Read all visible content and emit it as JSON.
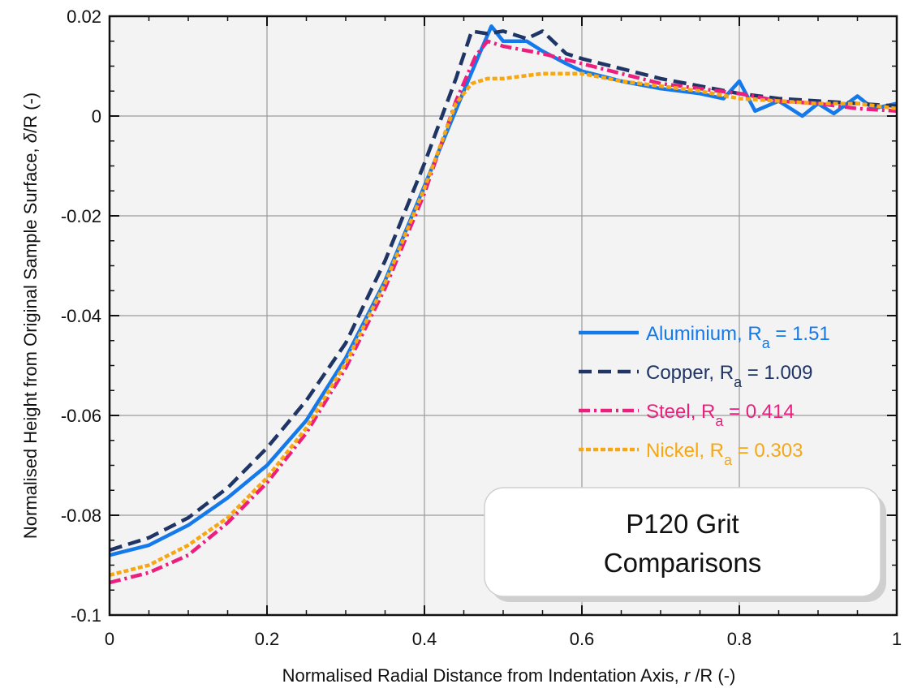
{
  "chart_data": {
    "type": "line",
    "title": "P120 Grit Comparisons",
    "annotation_lines": [
      "P120 Grit",
      "Comparisons"
    ],
    "xlabel": {
      "prefix": "Normalised Radial Distance from Indentation Axis, ",
      "italic": "r",
      "suffix": " /R (-)"
    },
    "ylabel": {
      "prefix": "Normalised Height from Original Sample Surface, ",
      "italic": "δ",
      "suffix": "/R (-)"
    },
    "xlim": [
      0,
      1
    ],
    "ylim": [
      -0.1,
      0.02
    ],
    "x_ticks": [
      0,
      0.2,
      0.4,
      0.6,
      0.8,
      1
    ],
    "x_tick_labels": [
      "0",
      "0.2",
      "0.4",
      "0.6",
      "0.8",
      "1"
    ],
    "y_ticks": [
      -0.1,
      -0.08,
      -0.06,
      -0.04,
      -0.02,
      0,
      0.02
    ],
    "y_tick_labels": [
      "-0.1",
      "-0.08",
      "-0.06",
      "-0.04",
      "-0.02",
      "0",
      "0.02"
    ],
    "grid": true,
    "legend_position": "center-right",
    "series": [
      {
        "name": "Aluminium",
        "legend_prefix": "Aluminium, R",
        "legend_sub": "a",
        "legend_suffix": " = 1.51",
        "color": "#1479ea",
        "style": "solid",
        "x": [
          0,
          0.05,
          0.1,
          0.15,
          0.2,
          0.25,
          0.3,
          0.35,
          0.4,
          0.45,
          0.47,
          0.485,
          0.5,
          0.53,
          0.55,
          0.58,
          0.6,
          0.65,
          0.7,
          0.75,
          0.78,
          0.8,
          0.82,
          0.85,
          0.88,
          0.9,
          0.92,
          0.95,
          0.97,
          1
        ],
        "y": [
          -0.088,
          -0.086,
          -0.082,
          -0.0765,
          -0.07,
          -0.061,
          -0.0485,
          -0.033,
          -0.014,
          0.005,
          0.0125,
          0.018,
          0.015,
          0.015,
          0.013,
          0.0105,
          0.009,
          0.007,
          0.0055,
          0.0045,
          0.0035,
          0.007,
          0.001,
          0.003,
          0.0,
          0.0025,
          0.0005,
          0.004,
          0.0015,
          0.0025
        ]
      },
      {
        "name": "Copper",
        "legend_prefix": "Copper, R",
        "legend_sub": "a",
        "legend_suffix": " = 1.009",
        "color": "#1e3565",
        "style": "dashed",
        "x": [
          0,
          0.05,
          0.1,
          0.15,
          0.2,
          0.25,
          0.3,
          0.35,
          0.4,
          0.44,
          0.46,
          0.48,
          0.5,
          0.53,
          0.55,
          0.58,
          0.6,
          0.65,
          0.7,
          0.75,
          0.8,
          0.85,
          0.9,
          0.95,
          1
        ],
        "y": [
          -0.087,
          -0.0845,
          -0.0805,
          -0.0745,
          -0.0665,
          -0.057,
          -0.0455,
          -0.029,
          -0.0095,
          0.0075,
          0.017,
          0.0165,
          0.017,
          0.0155,
          0.017,
          0.0125,
          0.0115,
          0.0095,
          0.0075,
          0.006,
          0.0045,
          0.0035,
          0.003,
          0.0025,
          0.002
        ]
      },
      {
        "name": "Steel",
        "legend_prefix": "Steel, R",
        "legend_sub": "a",
        "legend_suffix": " = 0.414",
        "color": "#ed1f7e",
        "style": "dashdot",
        "x": [
          0,
          0.05,
          0.1,
          0.15,
          0.2,
          0.25,
          0.3,
          0.35,
          0.4,
          0.44,
          0.465,
          0.48,
          0.5,
          0.55,
          0.6,
          0.65,
          0.7,
          0.75,
          0.8,
          0.85,
          0.9,
          0.95,
          1
        ],
        "y": [
          -0.0935,
          -0.0915,
          -0.088,
          -0.0815,
          -0.0735,
          -0.0635,
          -0.0505,
          -0.0345,
          -0.0155,
          0.003,
          0.012,
          0.015,
          0.014,
          0.0125,
          0.0105,
          0.0085,
          0.0065,
          0.0055,
          0.0045,
          0.003,
          0.0025,
          0.0015,
          0.001
        ]
      },
      {
        "name": "Nickel",
        "legend_prefix": "Nickel, R",
        "legend_sub": "a",
        "legend_suffix": " = 0.303",
        "color": "#f7a711",
        "style": "dotted",
        "x": [
          0,
          0.05,
          0.1,
          0.15,
          0.2,
          0.25,
          0.3,
          0.35,
          0.4,
          0.44,
          0.46,
          0.48,
          0.5,
          0.55,
          0.6,
          0.65,
          0.7,
          0.75,
          0.8,
          0.85,
          0.9,
          0.95,
          1
        ],
        "y": [
          -0.092,
          -0.09,
          -0.086,
          -0.0805,
          -0.0725,
          -0.0625,
          -0.0495,
          -0.0335,
          -0.0145,
          0.0025,
          0.0065,
          0.0075,
          0.0075,
          0.0085,
          0.0085,
          0.007,
          0.006,
          0.005,
          0.0035,
          0.003,
          0.0025,
          0.0025,
          0.0015
        ]
      }
    ]
  }
}
